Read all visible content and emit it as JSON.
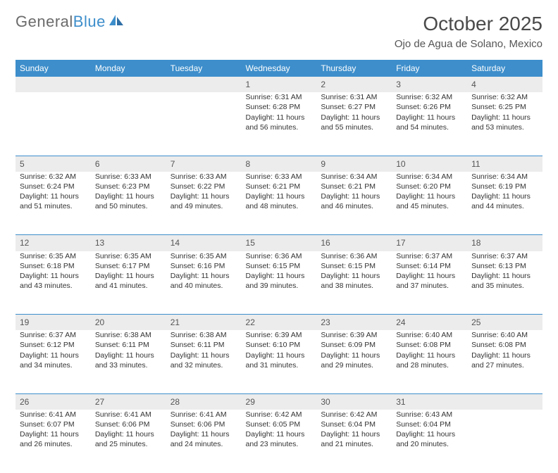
{
  "logo": {
    "part1": "General",
    "part2": "Blue"
  },
  "title": "October 2025",
  "location": "Ojo de Agua de Solano, Mexico",
  "colors": {
    "header_bg": "#3d8ecb",
    "header_fg": "#ffffff",
    "daynum_bg": "#ececec",
    "row_border": "#3d8ecb",
    "text": "#333333",
    "logo_gray": "#6b6b6b",
    "logo_blue": "#3d8ecb",
    "page_bg": "#ffffff"
  },
  "typography": {
    "title_fontsize": 28,
    "location_fontsize": 15,
    "dayhdr_fontsize": 12,
    "daynum_fontsize": 12,
    "cell_fontsize": 10.5
  },
  "day_headers": [
    "Sunday",
    "Monday",
    "Tuesday",
    "Wednesday",
    "Thursday",
    "Friday",
    "Saturday"
  ],
  "weeks": [
    {
      "nums": [
        "",
        "",
        "",
        "1",
        "2",
        "3",
        "4"
      ],
      "cells": [
        null,
        null,
        null,
        {
          "sunrise": "Sunrise: 6:31 AM",
          "sunset": "Sunset: 6:28 PM",
          "day1": "Daylight: 11 hours",
          "day2": "and 56 minutes."
        },
        {
          "sunrise": "Sunrise: 6:31 AM",
          "sunset": "Sunset: 6:27 PM",
          "day1": "Daylight: 11 hours",
          "day2": "and 55 minutes."
        },
        {
          "sunrise": "Sunrise: 6:32 AM",
          "sunset": "Sunset: 6:26 PM",
          "day1": "Daylight: 11 hours",
          "day2": "and 54 minutes."
        },
        {
          "sunrise": "Sunrise: 6:32 AM",
          "sunset": "Sunset: 6:25 PM",
          "day1": "Daylight: 11 hours",
          "day2": "and 53 minutes."
        }
      ]
    },
    {
      "nums": [
        "5",
        "6",
        "7",
        "8",
        "9",
        "10",
        "11"
      ],
      "cells": [
        {
          "sunrise": "Sunrise: 6:32 AM",
          "sunset": "Sunset: 6:24 PM",
          "day1": "Daylight: 11 hours",
          "day2": "and 51 minutes."
        },
        {
          "sunrise": "Sunrise: 6:33 AM",
          "sunset": "Sunset: 6:23 PM",
          "day1": "Daylight: 11 hours",
          "day2": "and 50 minutes."
        },
        {
          "sunrise": "Sunrise: 6:33 AM",
          "sunset": "Sunset: 6:22 PM",
          "day1": "Daylight: 11 hours",
          "day2": "and 49 minutes."
        },
        {
          "sunrise": "Sunrise: 6:33 AM",
          "sunset": "Sunset: 6:21 PM",
          "day1": "Daylight: 11 hours",
          "day2": "and 48 minutes."
        },
        {
          "sunrise": "Sunrise: 6:34 AM",
          "sunset": "Sunset: 6:21 PM",
          "day1": "Daylight: 11 hours",
          "day2": "and 46 minutes."
        },
        {
          "sunrise": "Sunrise: 6:34 AM",
          "sunset": "Sunset: 6:20 PM",
          "day1": "Daylight: 11 hours",
          "day2": "and 45 minutes."
        },
        {
          "sunrise": "Sunrise: 6:34 AM",
          "sunset": "Sunset: 6:19 PM",
          "day1": "Daylight: 11 hours",
          "day2": "and 44 minutes."
        }
      ]
    },
    {
      "nums": [
        "12",
        "13",
        "14",
        "15",
        "16",
        "17",
        "18"
      ],
      "cells": [
        {
          "sunrise": "Sunrise: 6:35 AM",
          "sunset": "Sunset: 6:18 PM",
          "day1": "Daylight: 11 hours",
          "day2": "and 43 minutes."
        },
        {
          "sunrise": "Sunrise: 6:35 AM",
          "sunset": "Sunset: 6:17 PM",
          "day1": "Daylight: 11 hours",
          "day2": "and 41 minutes."
        },
        {
          "sunrise": "Sunrise: 6:35 AM",
          "sunset": "Sunset: 6:16 PM",
          "day1": "Daylight: 11 hours",
          "day2": "and 40 minutes."
        },
        {
          "sunrise": "Sunrise: 6:36 AM",
          "sunset": "Sunset: 6:15 PM",
          "day1": "Daylight: 11 hours",
          "day2": "and 39 minutes."
        },
        {
          "sunrise": "Sunrise: 6:36 AM",
          "sunset": "Sunset: 6:15 PM",
          "day1": "Daylight: 11 hours",
          "day2": "and 38 minutes."
        },
        {
          "sunrise": "Sunrise: 6:37 AM",
          "sunset": "Sunset: 6:14 PM",
          "day1": "Daylight: 11 hours",
          "day2": "and 37 minutes."
        },
        {
          "sunrise": "Sunrise: 6:37 AM",
          "sunset": "Sunset: 6:13 PM",
          "day1": "Daylight: 11 hours",
          "day2": "and 35 minutes."
        }
      ]
    },
    {
      "nums": [
        "19",
        "20",
        "21",
        "22",
        "23",
        "24",
        "25"
      ],
      "cells": [
        {
          "sunrise": "Sunrise: 6:37 AM",
          "sunset": "Sunset: 6:12 PM",
          "day1": "Daylight: 11 hours",
          "day2": "and 34 minutes."
        },
        {
          "sunrise": "Sunrise: 6:38 AM",
          "sunset": "Sunset: 6:11 PM",
          "day1": "Daylight: 11 hours",
          "day2": "and 33 minutes."
        },
        {
          "sunrise": "Sunrise: 6:38 AM",
          "sunset": "Sunset: 6:11 PM",
          "day1": "Daylight: 11 hours",
          "day2": "and 32 minutes."
        },
        {
          "sunrise": "Sunrise: 6:39 AM",
          "sunset": "Sunset: 6:10 PM",
          "day1": "Daylight: 11 hours",
          "day2": "and 31 minutes."
        },
        {
          "sunrise": "Sunrise: 6:39 AM",
          "sunset": "Sunset: 6:09 PM",
          "day1": "Daylight: 11 hours",
          "day2": "and 29 minutes."
        },
        {
          "sunrise": "Sunrise: 6:40 AM",
          "sunset": "Sunset: 6:08 PM",
          "day1": "Daylight: 11 hours",
          "day2": "and 28 minutes."
        },
        {
          "sunrise": "Sunrise: 6:40 AM",
          "sunset": "Sunset: 6:08 PM",
          "day1": "Daylight: 11 hours",
          "day2": "and 27 minutes."
        }
      ]
    },
    {
      "nums": [
        "26",
        "27",
        "28",
        "29",
        "30",
        "31",
        ""
      ],
      "cells": [
        {
          "sunrise": "Sunrise: 6:41 AM",
          "sunset": "Sunset: 6:07 PM",
          "day1": "Daylight: 11 hours",
          "day2": "and 26 minutes."
        },
        {
          "sunrise": "Sunrise: 6:41 AM",
          "sunset": "Sunset: 6:06 PM",
          "day1": "Daylight: 11 hours",
          "day2": "and 25 minutes."
        },
        {
          "sunrise": "Sunrise: 6:41 AM",
          "sunset": "Sunset: 6:06 PM",
          "day1": "Daylight: 11 hours",
          "day2": "and 24 minutes."
        },
        {
          "sunrise": "Sunrise: 6:42 AM",
          "sunset": "Sunset: 6:05 PM",
          "day1": "Daylight: 11 hours",
          "day2": "and 23 minutes."
        },
        {
          "sunrise": "Sunrise: 6:42 AM",
          "sunset": "Sunset: 6:04 PM",
          "day1": "Daylight: 11 hours",
          "day2": "and 21 minutes."
        },
        {
          "sunrise": "Sunrise: 6:43 AM",
          "sunset": "Sunset: 6:04 PM",
          "day1": "Daylight: 11 hours",
          "day2": "and 20 minutes."
        },
        null
      ]
    }
  ]
}
